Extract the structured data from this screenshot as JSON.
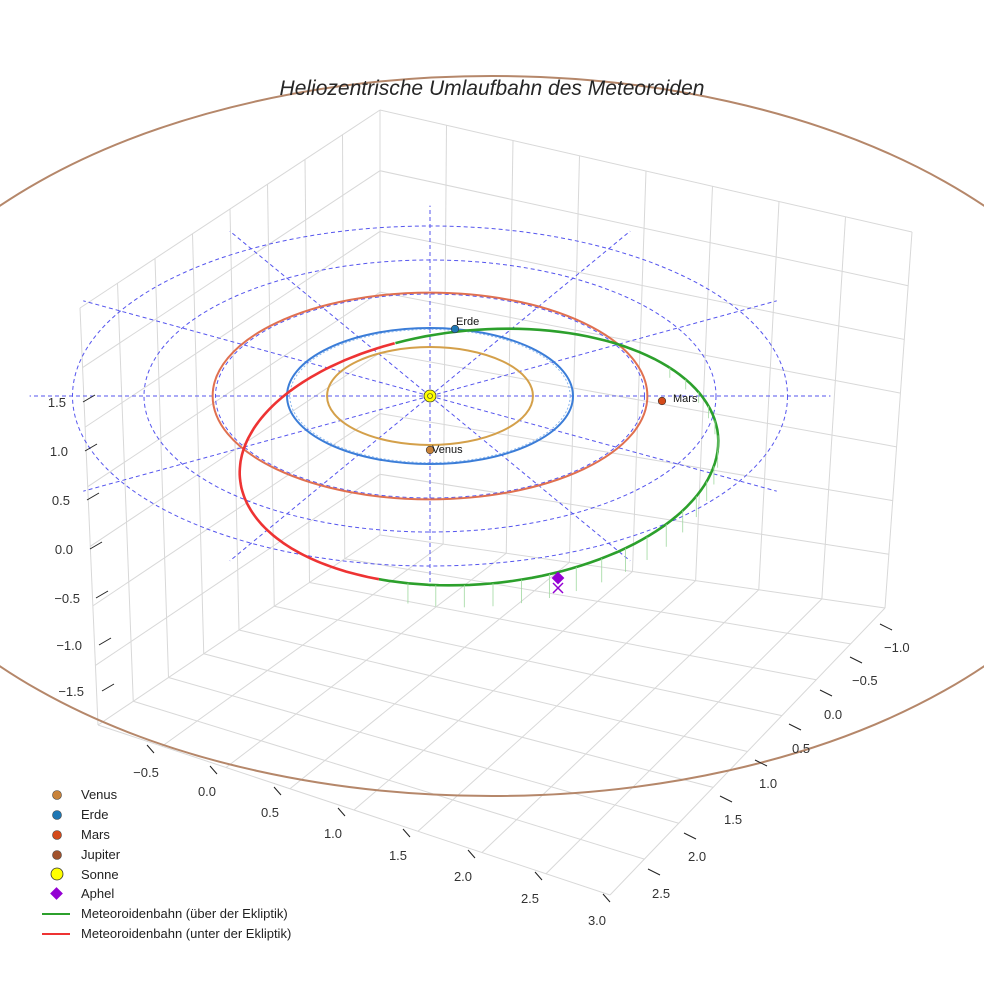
{
  "chart_data": {
    "type": "3d-orbit",
    "title": "Heliozentrische Umlaufbahn des Meteoroiden",
    "x_ticks": [
      "−0.5",
      "0.0",
      "0.5",
      "1.0",
      "1.5",
      "2.0",
      "2.5",
      "3.0"
    ],
    "y_ticks": [
      "−1.0",
      "−0.5",
      "0.0",
      "0.5",
      "1.0",
      "1.5",
      "2.0",
      "2.5"
    ],
    "z_ticks": [
      "1.5",
      "1.0",
      "0.5",
      "0.0",
      "−0.5",
      "−1.0",
      "−1.5"
    ],
    "grid": true,
    "reference_circles_au": [
      1.5,
      2.0,
      2.5
    ],
    "planets": [
      {
        "name": "Venus",
        "orbit_radius_au": 0.72,
        "color": "#c8823a",
        "orbit_color": "#d4a04a",
        "label": "Venus"
      },
      {
        "name": "Erde",
        "orbit_radius_au": 1.0,
        "color": "#1f77b4",
        "orbit_color": "#3b7dd8",
        "label": "Erde"
      },
      {
        "name": "Mars",
        "orbit_radius_au": 1.52,
        "color": "#d44a1a",
        "orbit_color": "#e07050",
        "label": "Mars"
      },
      {
        "name": "Jupiter",
        "orbit_radius_au": 5.2,
        "color": "#a0522d",
        "orbit_color": "#b5876a",
        "label": ""
      }
    ],
    "sun": {
      "name": "Sonne",
      "color": "#ffff00"
    },
    "meteoroid_orbit": {
      "above_label": "Meteoroidenbahn (über der Ekliptik)",
      "below_label": "Meteoroidenbahn (unter der Ekliptik)",
      "above_color": "#2ca02c",
      "below_color": "#ee3333"
    },
    "aphel": {
      "name": "Aphel",
      "color": "#9400d3"
    },
    "legend": [
      {
        "label": "Venus",
        "marker": "dot",
        "color": "#c8823a"
      },
      {
        "label": "Erde",
        "marker": "dot",
        "color": "#1f77b4"
      },
      {
        "label": "Mars",
        "marker": "dot",
        "color": "#d44a1a"
      },
      {
        "label": "Jupiter",
        "marker": "dot",
        "color": "#a0522d"
      },
      {
        "label": "Sonne",
        "marker": "sun",
        "color": "#ffff00"
      },
      {
        "label": "Aphel",
        "marker": "diamond",
        "color": "#9400d3"
      },
      {
        "label": "Meteoroidenbahn (über der Ekliptik)",
        "marker": "line",
        "color": "#2ca02c"
      },
      {
        "label": "Meteoroidenbahn (unter der Ekliptik)",
        "marker": "line",
        "color": "#ee3333"
      }
    ]
  }
}
